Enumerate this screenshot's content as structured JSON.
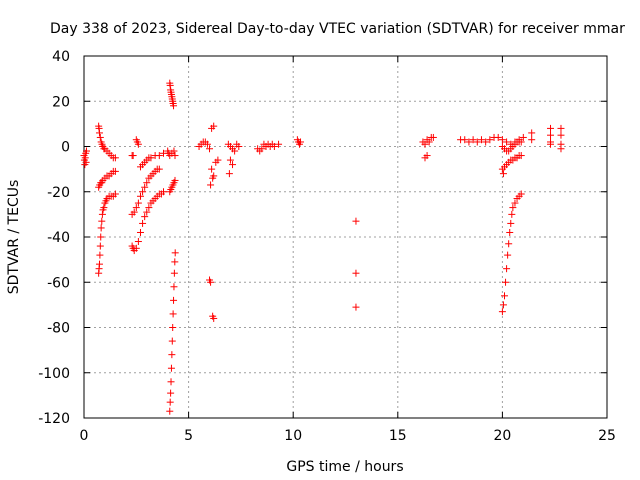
{
  "chart_data": {
    "type": "scatter",
    "title": "Day 338 of 2023, Sidereal Day-to-day VTEC variation (SDTVAR) for receiver mmar",
    "xlabel": "GPS time / hours",
    "ylabel": "SDTVAR / TECUs",
    "xlim": [
      0,
      25
    ],
    "ylim": [
      -120,
      40
    ],
    "xticks": [
      0,
      5,
      10,
      15,
      20,
      25
    ],
    "yticks": [
      40,
      20,
      0,
      -20,
      -40,
      -60,
      -80,
      -100,
      -120
    ],
    "xtick_labels": [
      "0",
      "5",
      "10",
      "15",
      "20",
      "25"
    ],
    "ytick_labels": [
      "40",
      "20",
      "0",
      "-20",
      "-40",
      "-60",
      "-80",
      "-100",
      "-120"
    ],
    "grid": true,
    "marker": "+",
    "color": "#ff0000",
    "series": [
      {
        "name": "segment-a",
        "points": [
          [
            0.0,
            -4
          ],
          [
            0.02,
            -6
          ],
          [
            0.04,
            -8
          ],
          [
            0.06,
            -5
          ],
          [
            0.08,
            -3
          ],
          [
            0.1,
            -7
          ],
          [
            0.12,
            -2
          ]
        ]
      },
      {
        "name": "segment-b",
        "points": [
          [
            0.7,
            -56
          ],
          [
            0.72,
            -54
          ],
          [
            0.74,
            -52
          ],
          [
            0.76,
            -48
          ],
          [
            0.78,
            -44
          ],
          [
            0.8,
            -40
          ],
          [
            0.82,
            -36
          ],
          [
            0.85,
            -33
          ],
          [
            0.88,
            -30
          ],
          [
            0.91,
            -28
          ],
          [
            0.95,
            -27
          ],
          [
            1.0,
            -25
          ],
          [
            1.05,
            -24
          ],
          [
            1.1,
            -23
          ],
          [
            1.2,
            -22
          ],
          [
            1.3,
            -22
          ],
          [
            1.4,
            -22
          ],
          [
            1.5,
            -21
          ]
        ]
      },
      {
        "name": "segment-c",
        "points": [
          [
            0.7,
            -18
          ],
          [
            0.75,
            -17
          ],
          [
            0.8,
            -16
          ],
          [
            0.85,
            -16
          ],
          [
            0.9,
            -15
          ],
          [
            1.0,
            -14
          ],
          [
            1.1,
            -13
          ],
          [
            1.2,
            -13
          ],
          [
            1.3,
            -12
          ],
          [
            1.4,
            -11
          ],
          [
            1.5,
            -11
          ]
        ]
      },
      {
        "name": "segment-d",
        "points": [
          [
            0.7,
            9
          ],
          [
            0.72,
            8
          ],
          [
            0.74,
            6
          ],
          [
            0.78,
            4
          ],
          [
            0.82,
            2
          ],
          [
            0.86,
            1
          ],
          [
            0.9,
            0
          ],
          [
            0.95,
            -1
          ],
          [
            1.0,
            -1
          ],
          [
            1.1,
            -2
          ],
          [
            1.2,
            -3
          ],
          [
            1.3,
            -4
          ],
          [
            1.4,
            -5
          ],
          [
            1.5,
            -5
          ]
        ]
      },
      {
        "name": "segment-e",
        "points": [
          [
            2.3,
            -44
          ],
          [
            2.35,
            -45
          ],
          [
            2.4,
            -46
          ],
          [
            2.5,
            -45
          ],
          [
            2.6,
            -42
          ],
          [
            2.7,
            -38
          ],
          [
            2.8,
            -34
          ],
          [
            2.9,
            -31
          ],
          [
            3.0,
            -29
          ],
          [
            3.1,
            -27
          ],
          [
            3.2,
            -25
          ],
          [
            3.3,
            -24
          ],
          [
            3.4,
            -23
          ],
          [
            3.5,
            -22
          ],
          [
            3.6,
            -21
          ],
          [
            3.7,
            -21
          ],
          [
            3.8,
            -20
          ]
        ]
      },
      {
        "name": "segment-f",
        "points": [
          [
            2.3,
            -30
          ],
          [
            2.4,
            -29
          ],
          [
            2.5,
            -27
          ],
          [
            2.6,
            -25
          ],
          [
            2.7,
            -22
          ],
          [
            2.8,
            -20
          ],
          [
            2.9,
            -18
          ],
          [
            3.0,
            -16
          ],
          [
            3.1,
            -14
          ],
          [
            3.2,
            -13
          ],
          [
            3.3,
            -12
          ],
          [
            3.4,
            -11
          ],
          [
            3.5,
            -10
          ],
          [
            3.6,
            -10
          ]
        ]
      },
      {
        "name": "segment-g",
        "points": [
          [
            2.3,
            -4
          ],
          [
            2.35,
            -4
          ],
          [
            2.5,
            3
          ],
          [
            2.55,
            2
          ],
          [
            2.6,
            1
          ],
          [
            2.7,
            -9
          ],
          [
            2.8,
            -8
          ],
          [
            2.9,
            -7
          ],
          [
            3.0,
            -6
          ],
          [
            3.1,
            -5
          ],
          [
            3.2,
            -5
          ],
          [
            3.4,
            -4
          ],
          [
            3.6,
            -4
          ],
          [
            3.8,
            -3
          ]
        ]
      },
      {
        "name": "segment-h",
        "points": [
          [
            4.0,
            -2
          ],
          [
            4.05,
            -3
          ],
          [
            4.1,
            -4
          ],
          [
            4.2,
            -3
          ],
          [
            4.3,
            -2
          ],
          [
            4.35,
            -4
          ]
        ]
      },
      {
        "name": "segment-i",
        "points": [
          [
            4.1,
            28
          ],
          [
            4.12,
            27
          ],
          [
            4.14,
            25
          ],
          [
            4.16,
            24
          ],
          [
            4.18,
            23
          ],
          [
            4.2,
            22
          ],
          [
            4.22,
            21
          ],
          [
            4.24,
            20
          ],
          [
            4.26,
            19
          ],
          [
            4.28,
            18
          ]
        ]
      },
      {
        "name": "segment-j",
        "points": [
          [
            4.1,
            -20
          ],
          [
            4.15,
            -19
          ],
          [
            4.2,
            -18
          ],
          [
            4.25,
            -17
          ],
          [
            4.3,
            -16
          ],
          [
            4.35,
            -15
          ]
        ]
      },
      {
        "name": "segment-k",
        "points": [
          [
            4.1,
            -117
          ],
          [
            4.12,
            -113
          ],
          [
            4.14,
            -109
          ],
          [
            4.16,
            -104
          ],
          [
            4.18,
            -98
          ],
          [
            4.2,
            -92
          ],
          [
            4.22,
            -86
          ],
          [
            4.24,
            -80
          ],
          [
            4.26,
            -74
          ],
          [
            4.28,
            -68
          ],
          [
            4.3,
            -62
          ],
          [
            4.32,
            -56
          ],
          [
            4.34,
            -51
          ],
          [
            4.36,
            -47
          ]
        ]
      },
      {
        "name": "segment-l",
        "points": [
          [
            5.5,
            0
          ],
          [
            5.6,
            1
          ],
          [
            5.7,
            2
          ],
          [
            5.8,
            2
          ],
          [
            5.9,
            1
          ],
          [
            6.0,
            -1
          ],
          [
            6.1,
            8
          ],
          [
            6.2,
            9
          ],
          [
            6.05,
            -17
          ],
          [
            6.15,
            -14
          ],
          [
            6.2,
            -13
          ],
          [
            6.1,
            -10
          ],
          [
            6.3,
            -7
          ],
          [
            6.4,
            -6
          ],
          [
            6.0,
            -59
          ],
          [
            6.05,
            -60
          ],
          [
            6.15,
            -75
          ],
          [
            6.2,
            -76
          ]
        ]
      },
      {
        "name": "segment-m",
        "points": [
          [
            6.9,
            1
          ],
          [
            7.0,
            0
          ],
          [
            7.1,
            -1
          ],
          [
            7.2,
            -2
          ],
          [
            7.0,
            -6
          ],
          [
            7.1,
            -8
          ],
          [
            6.95,
            -12
          ],
          [
            7.3,
            1
          ],
          [
            7.4,
            0
          ]
        ]
      },
      {
        "name": "segment-n",
        "points": [
          [
            8.3,
            -1
          ],
          [
            8.5,
            -1
          ],
          [
            8.7,
            0
          ],
          [
            8.9,
            0
          ],
          [
            9.1,
            0
          ],
          [
            9.3,
            1
          ],
          [
            8.4,
            -2
          ],
          [
            8.6,
            1
          ],
          [
            8.8,
            1
          ],
          [
            9.0,
            1
          ]
        ]
      },
      {
        "name": "segment-o",
        "points": [
          [
            10.2,
            3
          ],
          [
            10.25,
            2
          ],
          [
            10.3,
            1
          ],
          [
            10.35,
            2
          ]
        ]
      },
      {
        "name": "segment-p",
        "points": [
          [
            13.0,
            -33
          ],
          [
            13.0,
            -56
          ],
          [
            13.0,
            -71
          ]
        ]
      },
      {
        "name": "segment-q",
        "points": [
          [
            16.2,
            2
          ],
          [
            16.3,
            1
          ],
          [
            16.4,
            3
          ],
          [
            16.5,
            2
          ],
          [
            16.3,
            -5
          ],
          [
            16.4,
            -4
          ],
          [
            16.6,
            4
          ],
          [
            16.7,
            4
          ]
        ]
      },
      {
        "name": "segment-r",
        "points": [
          [
            18.0,
            3
          ],
          [
            18.2,
            3
          ],
          [
            18.4,
            2
          ],
          [
            18.6,
            3
          ],
          [
            18.8,
            2
          ],
          [
            19.0,
            3
          ],
          [
            19.2,
            2
          ],
          [
            19.4,
            3
          ],
          [
            19.6,
            4
          ],
          [
            19.8,
            4
          ],
          [
            20.0,
            3
          ],
          [
            20.2,
            2
          ],
          [
            20.4,
            1
          ],
          [
            20.6,
            2
          ],
          [
            20.8,
            3
          ],
          [
            21.0,
            4
          ]
        ]
      },
      {
        "name": "segment-s",
        "points": [
          [
            20.0,
            -73
          ],
          [
            20.05,
            -70
          ],
          [
            20.1,
            -66
          ],
          [
            20.15,
            -60
          ],
          [
            20.2,
            -54
          ],
          [
            20.25,
            -48
          ],
          [
            20.3,
            -43
          ],
          [
            20.35,
            -38
          ],
          [
            20.4,
            -34
          ],
          [
            20.45,
            -30
          ],
          [
            20.5,
            -27
          ],
          [
            20.6,
            -25
          ],
          [
            20.7,
            -23
          ],
          [
            20.8,
            -22
          ],
          [
            20.9,
            -21
          ]
        ]
      },
      {
        "name": "segment-t",
        "points": [
          [
            20.0,
            -10
          ],
          [
            20.05,
            -12
          ],
          [
            20.1,
            -9
          ],
          [
            20.2,
            -8
          ],
          [
            20.3,
            -7
          ],
          [
            20.4,
            -6
          ],
          [
            20.5,
            -6
          ],
          [
            20.6,
            -5
          ],
          [
            20.7,
            -5
          ],
          [
            20.8,
            -4
          ],
          [
            20.9,
            -4
          ]
        ]
      },
      {
        "name": "segment-u",
        "points": [
          [
            20.0,
            0
          ],
          [
            20.1,
            -1
          ],
          [
            20.2,
            -2
          ],
          [
            20.3,
            -2
          ],
          [
            20.4,
            -1
          ],
          [
            20.5,
            0
          ],
          [
            20.6,
            1
          ],
          [
            20.7,
            2
          ],
          [
            20.8,
            2
          ],
          [
            20.9,
            2
          ]
        ]
      },
      {
        "name": "segment-v",
        "points": [
          [
            21.4,
            6
          ],
          [
            21.4,
            3
          ],
          [
            22.3,
            8
          ],
          [
            22.3,
            5
          ],
          [
            22.3,
            2
          ],
          [
            22.3,
            1
          ],
          [
            22.8,
            8
          ],
          [
            22.8,
            5
          ],
          [
            22.8,
            1
          ],
          [
            22.8,
            -1
          ]
        ]
      }
    ]
  }
}
